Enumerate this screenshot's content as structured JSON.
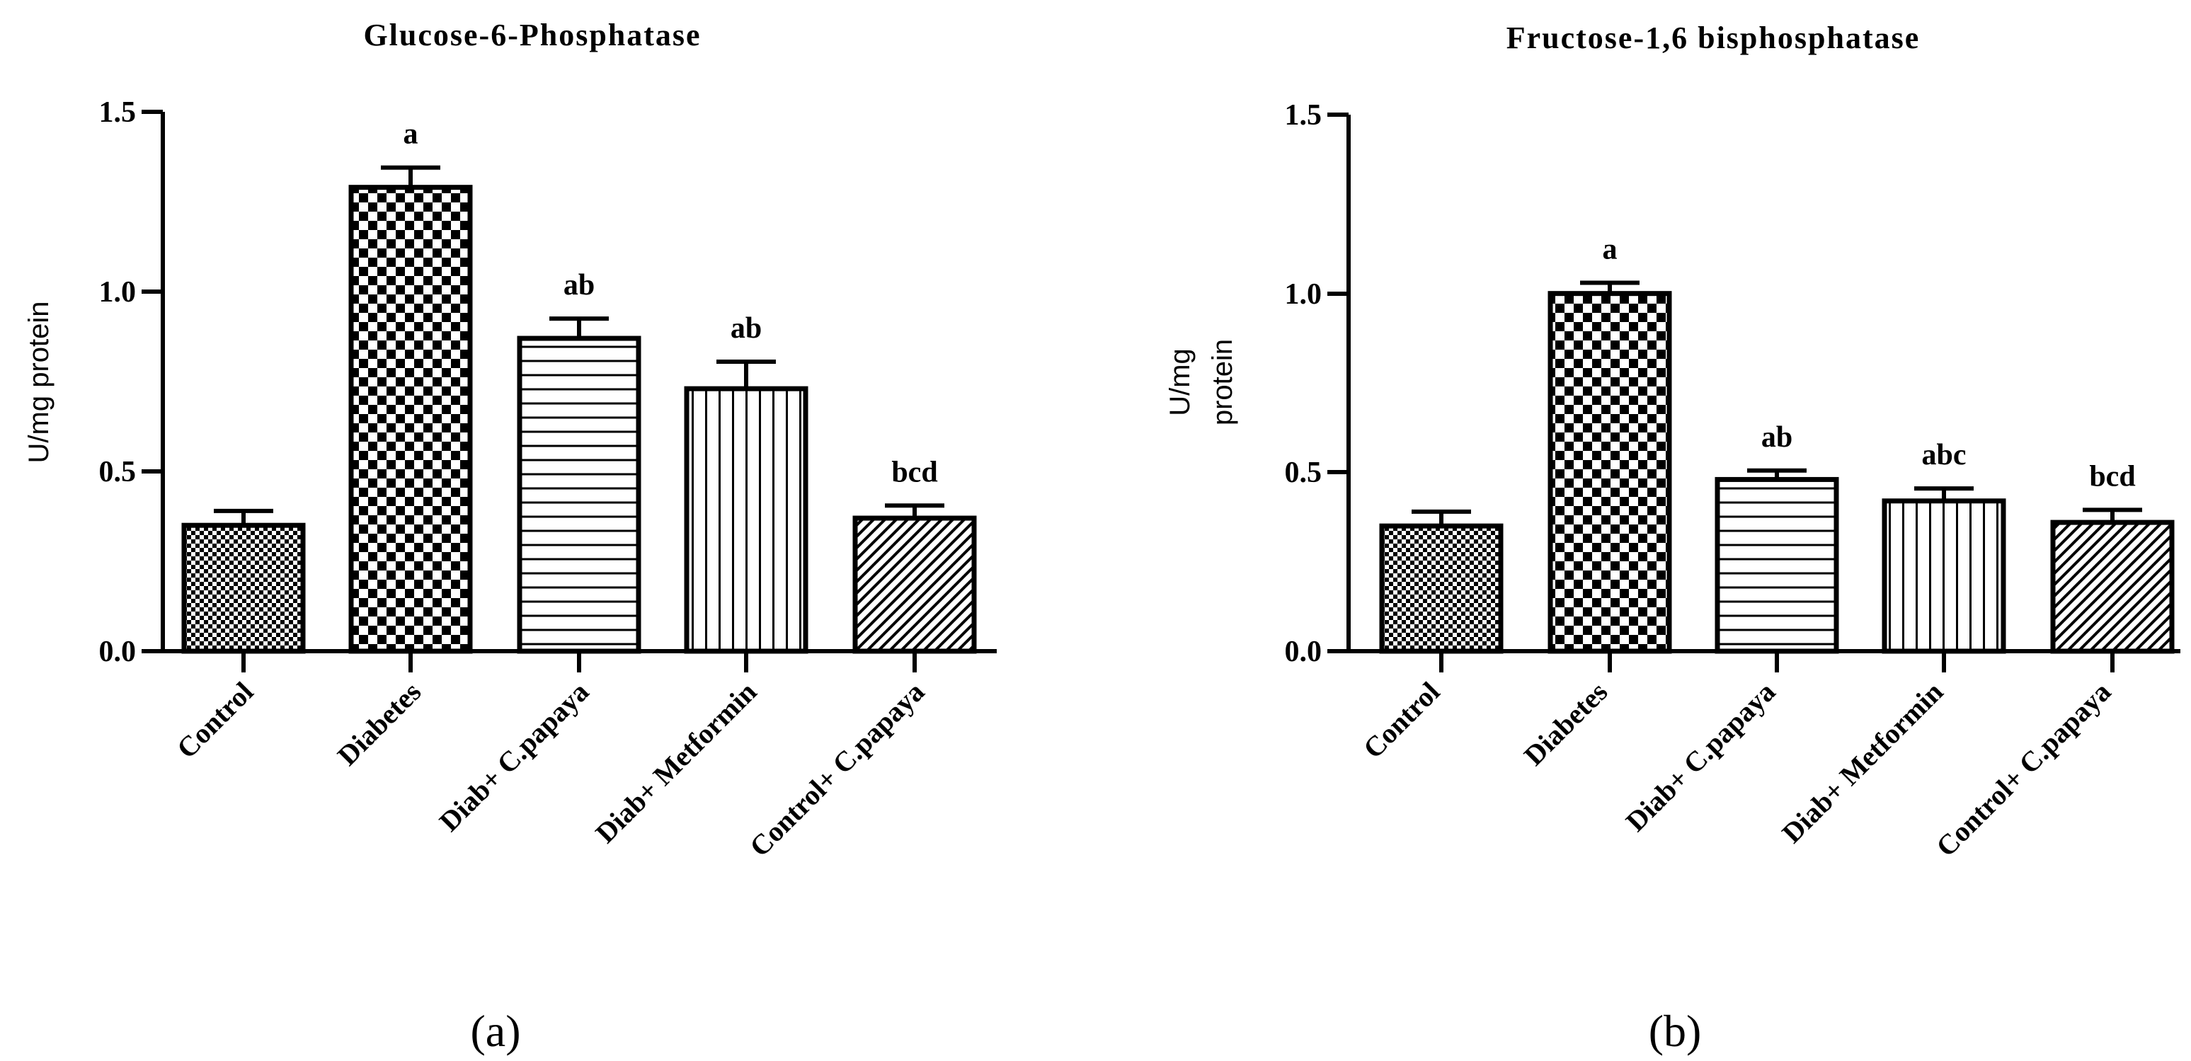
{
  "chart_data": [
    {
      "type": "bar",
      "panel_label": "(a)",
      "title": "Glucose-6-Phosphatase",
      "xlabel": "",
      "ylabel": "U/mg protein",
      "ylabel_lines": [
        "U/mg protein"
      ],
      "ylim": [
        0,
        1.5
      ],
      "yticks": [
        "0.0",
        "0.5",
        "1.0",
        "1.5"
      ],
      "categories": [
        "Control",
        "Diabetes",
        "Diab+ C.papaya",
        "Diab+ Metformin",
        "Control+ C.papaya"
      ],
      "values": [
        0.35,
        1.29,
        0.87,
        0.73,
        0.37
      ],
      "errors": [
        0.04,
        0.055,
        0.055,
        0.075,
        0.035
      ],
      "annotations": [
        "",
        "a",
        "ab",
        "ab",
        "bcd"
      ],
      "patterns": [
        "checker-fine",
        "checker-coarse",
        "horizontal",
        "vertical",
        "diagonal"
      ]
    },
    {
      "type": "bar",
      "panel_label": "(b)",
      "title": "Fructose-1,6 bisphosphatase",
      "xlabel": "",
      "ylabel": "U/mg protein",
      "ylabel_lines": [
        "U/mg",
        "protein"
      ],
      "ylim": [
        0,
        1.5
      ],
      "yticks": [
        "0.0",
        "0.5",
        "1.0",
        "1.5"
      ],
      "categories": [
        "Control",
        "Diabetes",
        "Diab+ C.papaya",
        "Diab+ Metformin",
        "Control+ C.papaya"
      ],
      "values": [
        0.35,
        1.0,
        0.48,
        0.42,
        0.36
      ],
      "errors": [
        0.04,
        0.03,
        0.025,
        0.035,
        0.035
      ],
      "annotations": [
        "",
        "a",
        "ab",
        "abc",
        "bcd"
      ],
      "patterns": [
        "checker-fine",
        "checker-coarse",
        "horizontal",
        "vertical",
        "diagonal"
      ]
    }
  ]
}
